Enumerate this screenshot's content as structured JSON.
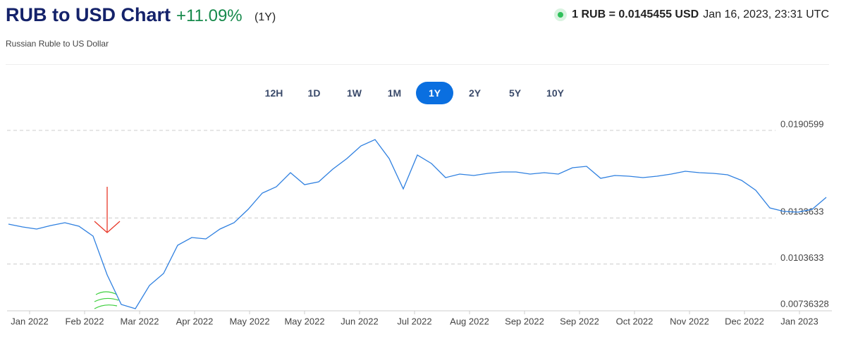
{
  "header": {
    "title": "RUB to USD Chart",
    "change": "+11.09%",
    "period": "(1Y)",
    "subtitle": "Russian Ruble to US Dollar",
    "rate": "1 RUB = 0.0145455 USD",
    "timestamp": "Jan 16, 2023, 23:31 UTC"
  },
  "ranges": {
    "options": [
      "12H",
      "1D",
      "1W",
      "1M",
      "1Y",
      "2Y",
      "5Y",
      "10Y"
    ],
    "active_index": 4
  },
  "chart_data": {
    "type": "line",
    "xtick_labels": [
      "Jan 2022",
      "Feb 2022",
      "Mar 2022",
      "Apr 2022",
      "May 2022",
      "May 2022",
      "Jun 2022",
      "Jul 2022",
      "Aug 2022",
      "Sep 2022",
      "Sep 2022",
      "Oct 2022",
      "Nov 2022",
      "Dec 2022",
      "Jan 2023"
    ],
    "series": [
      {
        "color": "#2f80e0",
        "values": [
          0.012959,
          0.012776,
          0.012638,
          0.012868,
          0.013051,
          0.012822,
          0.01218,
          0.009657,
          0.00773,
          0.007455,
          0.008969,
          0.009749,
          0.011583,
          0.012088,
          0.011996,
          0.012638,
          0.013051,
          0.013923,
          0.014978,
          0.01539,
          0.016308,
          0.015528,
          0.015712,
          0.016537,
          0.017225,
          0.018051,
          0.018464,
          0.017225,
          0.015253,
          0.017455,
          0.016904,
          0.015987,
          0.016216,
          0.016124,
          0.016262,
          0.016354,
          0.016354,
          0.016216,
          0.016308,
          0.016216,
          0.016629,
          0.016721,
          0.015941,
          0.016124,
          0.016078,
          0.015987,
          0.016078,
          0.016216,
          0.016399,
          0.016308,
          0.016262,
          0.01617,
          0.015803,
          0.015161,
          0.014014,
          0.013785,
          0.013739,
          0.013923,
          0.014702
        ]
      }
    ],
    "ylim": [
      0.00736328,
      0.0190599
    ],
    "yticks": [
      0.00736328,
      0.0103633,
      0.0133633,
      0.0190599
    ],
    "grid": true
  }
}
